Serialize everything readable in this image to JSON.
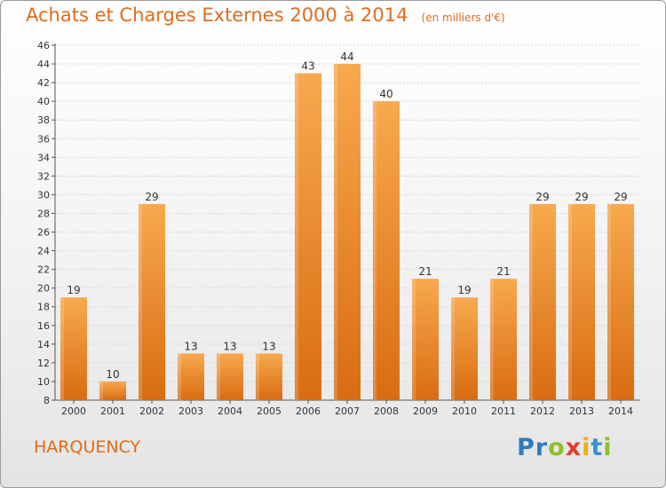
{
  "title": "Achats et Charges Externes 2000 à 2014",
  "unit_note": "(en milliers d'€)",
  "commune": "HARQUENCY",
  "logo": {
    "text": "Proxiti",
    "letters": [
      "P",
      "r",
      "o",
      "x",
      "i",
      "t",
      "i"
    ],
    "colors": [
      "#2f7bbf",
      "#2f7bbf",
      "#8cbf2a",
      "#e63a2e",
      "#f0b000",
      "#3a8fd0",
      "#8cbf2a"
    ]
  },
  "chart_data": {
    "type": "bar",
    "categories": [
      "2000",
      "2001",
      "2002",
      "2003",
      "2004",
      "2005",
      "2006",
      "2007",
      "2008",
      "2009",
      "2010",
      "2011",
      "2012",
      "2013",
      "2014"
    ],
    "values": [
      19,
      10,
      29,
      13,
      13,
      13,
      43,
      44,
      40,
      21,
      19,
      21,
      29,
      29,
      29
    ],
    "data_labels": [
      "19",
      "10",
      "29",
      "13",
      "13",
      "13",
      "43",
      "44",
      "40",
      "21",
      "19",
      "21",
      "29",
      "29",
      "29"
    ],
    "y_ticks": [
      8,
      10,
      12,
      14,
      16,
      18,
      20,
      22,
      24,
      26,
      28,
      30,
      32,
      34,
      36,
      38,
      40,
      42,
      44,
      46
    ],
    "ylim": [
      8,
      46
    ],
    "grid": true,
    "legend": "none",
    "bar_color": "#f08a2a",
    "bar_color_light": "#f8a94e",
    "bar_color_dark": "#d96c12"
  }
}
